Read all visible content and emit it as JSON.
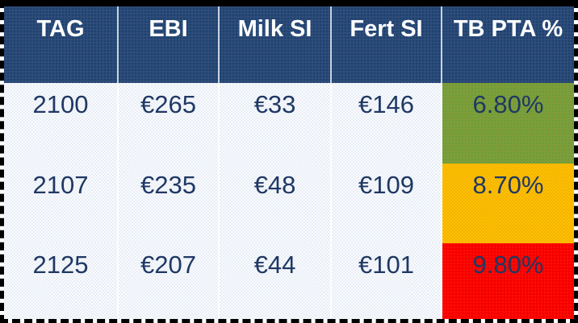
{
  "table": {
    "columns": [
      {
        "label": "TAG"
      },
      {
        "label": "EBI"
      },
      {
        "label": "Milk SI"
      },
      {
        "label": "Fert SI"
      },
      {
        "label": "TB PTA %"
      }
    ],
    "rows": [
      {
        "tag": "2100",
        "ebi": "€265",
        "milk_si": "€33",
        "fert_si": "€146",
        "tb_pta": "6.80%",
        "tb_color": "#77A13C",
        "tb_status": "green"
      },
      {
        "tag": "2107",
        "ebi": "€235",
        "milk_si": "€48",
        "fert_si": "€109",
        "tb_pta": "8.70%",
        "tb_color": "#FFC000",
        "tb_status": "amber"
      },
      {
        "tag": "2125",
        "ebi": "€207",
        "milk_si": "€44",
        "fert_si": "€101",
        "tb_pta": "9.80%",
        "tb_color": "#FE0000",
        "tb_status": "red"
      }
    ],
    "colors": {
      "header_bg": "#254B7D",
      "header_text": "#FFFFFF",
      "body_bg": "#E9EEF6",
      "body_text": "#1F3864",
      "status_green": "#77A13C",
      "status_amber": "#FFC000",
      "status_red": "#FE0000",
      "outer_border": "#000000"
    }
  },
  "chart_data": {
    "type": "table",
    "title": "",
    "columns": [
      "TAG",
      "EBI",
      "Milk SI",
      "Fert SI",
      "TB PTA %"
    ],
    "rows": [
      [
        "2100",
        "€265",
        "€33",
        "€146",
        "6.80%"
      ],
      [
        "2107",
        "€235",
        "€48",
        "€109",
        "8.70%"
      ],
      [
        "2125",
        "€207",
        "€44",
        "€101",
        "9.80%"
      ]
    ],
    "tb_pta_cell_colors": [
      "#77A13C",
      "#FFC000",
      "#FE0000"
    ],
    "layout_hints": {
      "header_style": "navy background, white bold text",
      "body_style": "light blue-gray background, navy text",
      "outer_border": "black dashed selection border, thick solid top"
    }
  }
}
